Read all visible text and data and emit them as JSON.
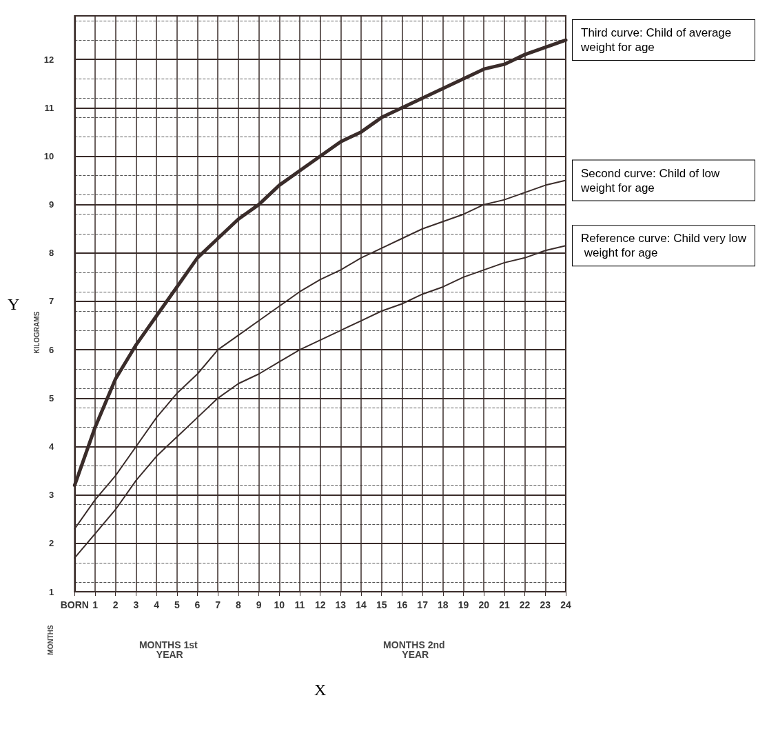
{
  "chart_data": {
    "type": "line",
    "xlabel": "X",
    "ylabel": "Y",
    "x": [
      0,
      1,
      2,
      3,
      4,
      5,
      6,
      7,
      8,
      9,
      10,
      11,
      12,
      13,
      14,
      15,
      16,
      17,
      18,
      19,
      20,
      21,
      22,
      23,
      24
    ],
    "series": [
      {
        "name": "Third curve: Child of average weight for age",
        "color": "#3a2c2a",
        "values": [
          3.2,
          4.4,
          5.4,
          6.1,
          6.7,
          7.3,
          7.9,
          8.3,
          8.7,
          9.0,
          9.4,
          9.7,
          10.0,
          10.3,
          10.5,
          10.8,
          11.0,
          11.2,
          11.4,
          11.6,
          11.8,
          11.9,
          12.1,
          12.25,
          12.4
        ]
      },
      {
        "name": "Second curve: Child of low weight for age",
        "color": "#3a2c2a",
        "values": [
          2.3,
          2.9,
          3.4,
          4.0,
          4.6,
          5.1,
          5.5,
          6.0,
          6.3,
          6.6,
          6.9,
          7.2,
          7.45,
          7.65,
          7.9,
          8.1,
          8.3,
          8.5,
          8.65,
          8.8,
          9.0,
          9.1,
          9.25,
          9.4,
          9.5
        ]
      },
      {
        "name": "Reference curve: Child very low weight for age",
        "color": "#3a2c2a",
        "values": [
          1.7,
          2.2,
          2.7,
          3.3,
          3.8,
          4.2,
          4.6,
          5.0,
          5.3,
          5.5,
          5.75,
          6.0,
          6.2,
          6.4,
          6.6,
          6.8,
          6.95,
          7.15,
          7.3,
          7.5,
          7.65,
          7.8,
          7.9,
          8.05,
          8.15
        ]
      }
    ],
    "xlim": [
      0,
      24
    ],
    "xticks": [
      {
        "value": 0,
        "label": "BORN"
      },
      1,
      2,
      3,
      4,
      5,
      6,
      7,
      8,
      9,
      10,
      11,
      12,
      13,
      14,
      15,
      16,
      17,
      18,
      19,
      20,
      21,
      22,
      23,
      24
    ],
    "ylim": [
      1,
      12.9
    ],
    "yticks": [
      1,
      2,
      3,
      4,
      5,
      6,
      7,
      8,
      9,
      10,
      11,
      12
    ],
    "grid": true,
    "legend": false,
    "marker": "none",
    "line_style": "solid",
    "annotations": [
      "KILOGRAMS",
      "MONTHS",
      "MONTHS 1st YEAR",
      "MONTHS 2nd YEAR"
    ]
  }
}
